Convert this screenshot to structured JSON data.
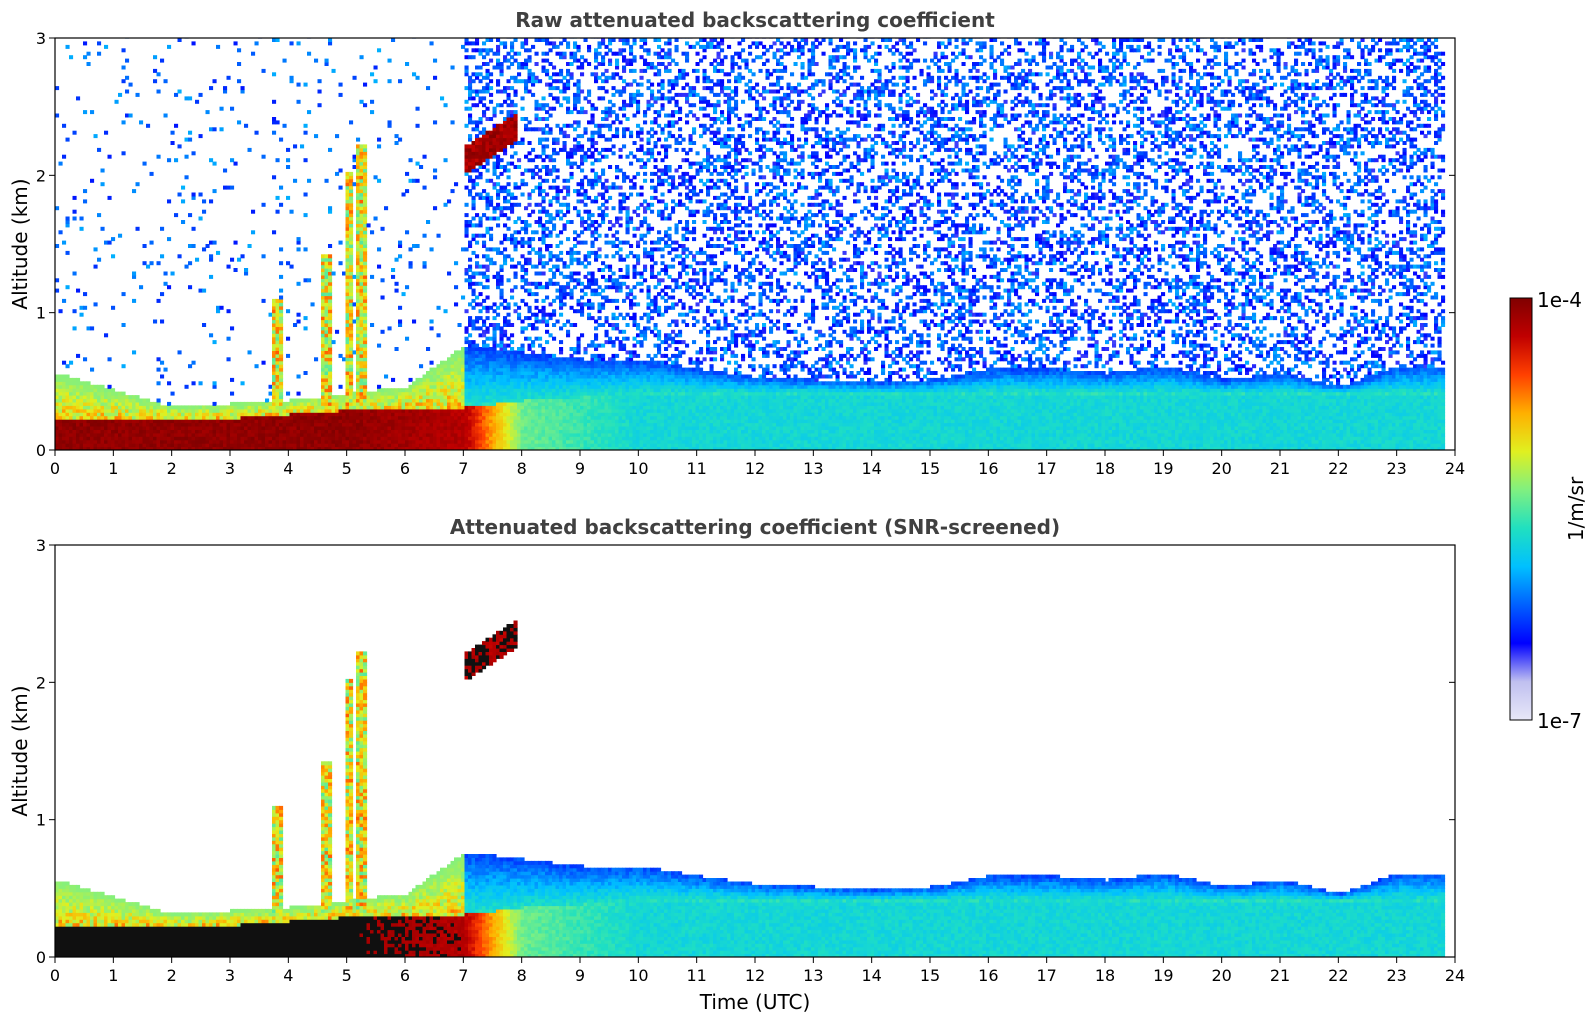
{
  "chart_data": [
    {
      "type": "heatmap",
      "title": "Raw attenuated backscattering coefficient",
      "xlabel": "",
      "ylabel": "Altitude (km)",
      "x_ticks": [
        "0",
        "1",
        "2",
        "3",
        "4",
        "5",
        "6",
        "7",
        "8",
        "9",
        "10",
        "11",
        "12",
        "13",
        "14",
        "15",
        "16",
        "17",
        "18",
        "19",
        "20",
        "21",
        "22",
        "23",
        "24"
      ],
      "y_ticks": [
        "0",
        "1",
        "2",
        "3"
      ],
      "xlim": [
        0,
        24
      ],
      "ylim": [
        0,
        3
      ],
      "data_extent_x": [
        0,
        23.8
      ],
      "features": {
        "surface_layer": [
          {
            "t": 0,
            "top": 0.2,
            "intensity": 1.0
          },
          {
            "t": 3,
            "top": 0.22,
            "intensity": 1.0
          },
          {
            "t": 5,
            "top": 0.28,
            "intensity": 1.0
          },
          {
            "t": 7,
            "top": 0.3,
            "intensity": 0.95
          },
          {
            "t": 8,
            "top": 0.35,
            "intensity": 0.55
          },
          {
            "t": 10,
            "top": 0.4,
            "intensity": 0.45
          }
        ],
        "boundary_layer_top": [
          {
            "t": 0,
            "km": 0.55
          },
          {
            "t": 2,
            "km": 0.3
          },
          {
            "t": 4,
            "km": 0.35
          },
          {
            "t": 6,
            "km": 0.45
          },
          {
            "t": 7,
            "km": 0.75
          },
          {
            "t": 8,
            "km": 0.7
          },
          {
            "t": 9,
            "km": 0.65
          },
          {
            "t": 10,
            "km": 0.65
          },
          {
            "t": 11,
            "km": 0.58
          },
          {
            "t": 12,
            "km": 0.52
          },
          {
            "t": 13,
            "km": 0.5
          },
          {
            "t": 14,
            "km": 0.48
          },
          {
            "t": 15,
            "km": 0.5
          },
          {
            "t": 16,
            "km": 0.58
          },
          {
            "t": 17,
            "km": 0.58
          },
          {
            "t": 18,
            "km": 0.55
          },
          {
            "t": 19,
            "km": 0.6
          },
          {
            "t": 20,
            "km": 0.5
          },
          {
            "t": 21,
            "km": 0.55
          },
          {
            "t": 22,
            "km": 0.45
          },
          {
            "t": 23,
            "km": 0.6
          },
          {
            "t": 23.8,
            "km": 0.6
          }
        ],
        "plumes": [
          {
            "t": 4.6,
            "base": 0.3,
            "top": 1.4
          },
          {
            "t": 5.0,
            "base": 0.3,
            "top": 2.0
          },
          {
            "t": 5.2,
            "base": 0.3,
            "top": 2.2
          },
          {
            "t": 3.8,
            "base": 0.3,
            "top": 1.1
          }
        ],
        "elevated_layer": {
          "t0": 7.0,
          "t1": 7.9,
          "km0": 2.1,
          "km1": 2.35
        },
        "noise_from_hour": 7.0
      }
    },
    {
      "type": "heatmap",
      "title": "Attenuated backscattering coefficient (SNR-screened)",
      "xlabel": "Time (UTC)",
      "ylabel": "Altitude (km)",
      "x_ticks": [
        "0",
        "1",
        "2",
        "3",
        "4",
        "5",
        "6",
        "7",
        "8",
        "9",
        "10",
        "11",
        "12",
        "13",
        "14",
        "15",
        "16",
        "17",
        "18",
        "19",
        "20",
        "21",
        "22",
        "23",
        "24"
      ],
      "y_ticks": [
        "0",
        "1",
        "2",
        "3"
      ],
      "xlim": [
        0,
        24
      ],
      "ylim": [
        0,
        3
      ],
      "data_extent_x": [
        0,
        23.8
      ],
      "screened": true
    }
  ],
  "colorbar": {
    "label": "1/m/sr",
    "max_label": "1e-4",
    "min_label": "1e-7",
    "colormap": [
      "#e8e8f8",
      "#c0c0f0",
      "#0000ff",
      "#0060ff",
      "#00c0ff",
      "#20e0c0",
      "#80f080",
      "#e0f020",
      "#ffb000",
      "#ff4000",
      "#c00000",
      "#800000"
    ]
  }
}
